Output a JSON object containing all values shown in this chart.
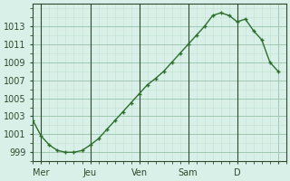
{
  "x_values": [
    0,
    1,
    2,
    3,
    4,
    5,
    6,
    7,
    8,
    9,
    10,
    11,
    12,
    13,
    14,
    15,
    16,
    17,
    18,
    19,
    20,
    21,
    22,
    23,
    24,
    25,
    26,
    27,
    28,
    29,
    30
  ],
  "y_values": [
    1002.5,
    1000.8,
    999.8,
    999.2,
    999.0,
    999.0,
    999.2,
    999.8,
    1000.5,
    1001.5,
    1002.5,
    1003.5,
    1004.5,
    1005.5,
    1006.5,
    1007.2,
    1008.0,
    1009.0,
    1010.0,
    1011.0,
    1012.0,
    1013.0,
    1014.2,
    1014.5,
    1014.2,
    1013.5,
    1013.8,
    1012.5,
    1011.5,
    1009.0,
    1008.0
  ],
  "day_positions": [
    1,
    7,
    13,
    19,
    25,
    30
  ],
  "day_labels": [
    "Mer",
    "Jeu",
    "Ven",
    "Sam",
    "D"
  ],
  "yticks": [
    999,
    1001,
    1003,
    1005,
    1007,
    1009,
    1011,
    1013
  ],
  "ylim": [
    998.0,
    1015.5
  ],
  "xlim": [
    0,
    31
  ],
  "line_color": "#2d6e2d",
  "marker_color": "#2d6e2d",
  "bg_color": "#d8f0e8",
  "grid_color_major": "#a0c8b0",
  "grid_color_minor": "#c0e0d0",
  "axis_color": "#2d4a2d",
  "tick_label_color": "#2d4a2d",
  "font_size": 7,
  "vline_positions": [
    1,
    7,
    13,
    19,
    25
  ]
}
